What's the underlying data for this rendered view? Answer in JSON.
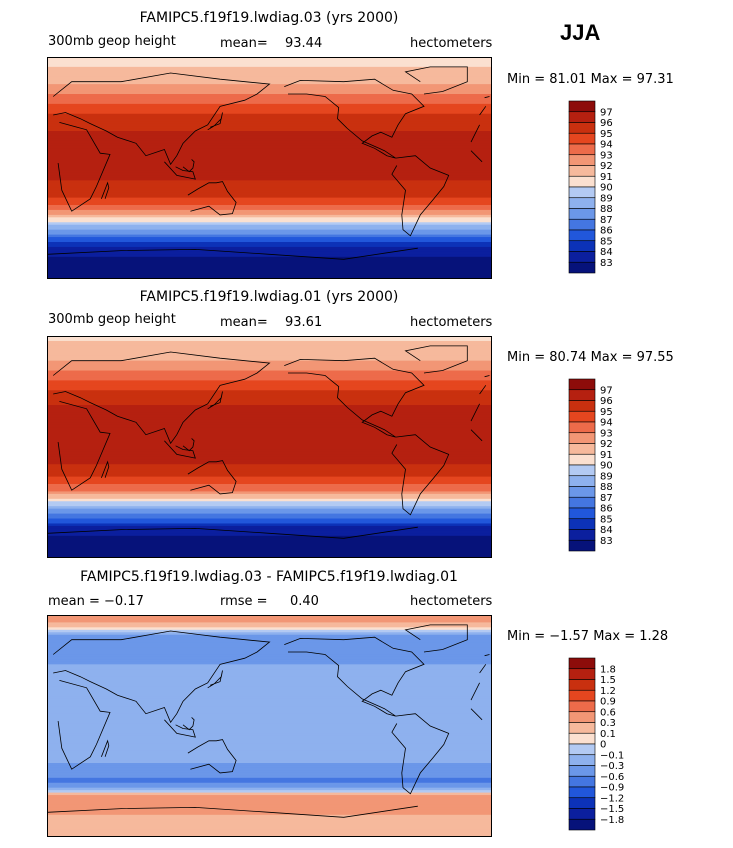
{
  "season": "JJA",
  "colors": {
    "warm": [
      "#fbe0d0",
      "#f6b99c",
      "#f29675",
      "#ed6b4a",
      "#e5461f",
      "#c9300f",
      "#b52010",
      "#8d0c0a"
    ],
    "cool": [
      "#dde8f9",
      "#b3caf3",
      "#8eb1ee",
      "#6b97e9",
      "#4476e1",
      "#2157db",
      "#0c32b8",
      "#0b1f9e",
      "#06127a"
    ]
  },
  "panels": [
    {
      "title": "FAMIPC5.f19f19.lwdiag.03 (yrs 2000)",
      "left": "300mb geop height",
      "mid_label": "mean=",
      "mid_value": "93.44",
      "right": "hectometers",
      "minmax": "Min =  81.01 Max =  97.31"
    },
    {
      "title": "FAMIPC5.f19f19.lwdiag.01 (yrs 2000)",
      "left": "300mb geop height",
      "mid_label": "mean=",
      "mid_value": "93.61",
      "right": "hectometers",
      "minmax": "Min =  80.74 Max =  97.55"
    },
    {
      "title": "FAMIPC5.f19f19.lwdiag.03 - FAMIPC5.f19f19.lwdiag.01",
      "left": "mean =  −0.17",
      "mid_label": "rmse =",
      "mid_value": "0.40",
      "right": "hectometers",
      "minmax": "Min =  −1.57 Max =   1.28"
    }
  ],
  "chart_data": [
    {
      "type": "heatmap",
      "title": "FAMIPC5.f19f19.lwdiag.03 (yrs 2000)",
      "variable": "300mb geop height",
      "units": "hectometers",
      "mean": 93.44,
      "min": 81.01,
      "max": 97.31,
      "levels": [
        83,
        84,
        85,
        86,
        87,
        88,
        89,
        90,
        91,
        92,
        93,
        94,
        95,
        96,
        97
      ],
      "level_labels": [
        "97",
        "96",
        "95",
        "94",
        "93",
        "92",
        "91",
        "90",
        "89",
        "88",
        "87",
        "86",
        "85",
        "84",
        "83"
      ],
      "zonal_profile": [
        {
          "lat": 90,
          "value": 90.5
        },
        {
          "lat": 70,
          "value": 91.8
        },
        {
          "lat": 55,
          "value": 93.5
        },
        {
          "lat": 40,
          "value": 95.5
        },
        {
          "lat": 20,
          "value": 96.6
        },
        {
          "lat": 0,
          "value": 96.4
        },
        {
          "lat": -20,
          "value": 95.6
        },
        {
          "lat": -35,
          "value": 93.0
        },
        {
          "lat": -45,
          "value": 89.5
        },
        {
          "lat": -55,
          "value": 86.5
        },
        {
          "lat": -65,
          "value": 84.0
        },
        {
          "lat": -80,
          "value": 82.0
        }
      ]
    },
    {
      "type": "heatmap",
      "title": "FAMIPC5.f19f19.lwdiag.01 (yrs 2000)",
      "variable": "300mb geop height",
      "units": "hectometers",
      "mean": 93.61,
      "min": 80.74,
      "max": 97.55,
      "levels": [
        83,
        84,
        85,
        86,
        87,
        88,
        89,
        90,
        91,
        92,
        93,
        94,
        95,
        96,
        97
      ],
      "level_labels": [
        "97",
        "96",
        "95",
        "94",
        "93",
        "92",
        "91",
        "90",
        "89",
        "88",
        "87",
        "86",
        "85",
        "84",
        "83"
      ],
      "zonal_profile": [
        {
          "lat": 90,
          "value": 90.8
        },
        {
          "lat": 70,
          "value": 92.0
        },
        {
          "lat": 55,
          "value": 93.8
        },
        {
          "lat": 40,
          "value": 95.7
        },
        {
          "lat": 20,
          "value": 96.9
        },
        {
          "lat": 0,
          "value": 96.6
        },
        {
          "lat": -20,
          "value": 95.8
        },
        {
          "lat": -35,
          "value": 93.2
        },
        {
          "lat": -45,
          "value": 89.8
        },
        {
          "lat": -55,
          "value": 86.6
        },
        {
          "lat": -65,
          "value": 84.0
        },
        {
          "lat": -80,
          "value": 81.8
        }
      ]
    },
    {
      "type": "heatmap",
      "title": "FAMIPC5.f19f19.lwdiag.03 - FAMIPC5.f19f19.lwdiag.01",
      "units": "hectometers",
      "mean": -0.17,
      "rmse": 0.4,
      "min": -1.57,
      "max": 1.28,
      "levels": [
        -1.8,
        -1.5,
        -1.2,
        -0.9,
        -0.6,
        -0.3,
        -0.1,
        0,
        0.1,
        0.3,
        0.6,
        0.9,
        1.2,
        1.5,
        1.8
      ],
      "level_labels": [
        "1.8",
        "1.5",
        "1.2",
        "0.9",
        "0.6",
        "0.3",
        "0.1",
        "0",
        "−0.1",
        "−0.3",
        "−0.6",
        "−0.9",
        "−1.2",
        "−1.5",
        "−1.8"
      ],
      "zonal_profile": [
        {
          "lat": 85,
          "value": 0.4
        },
        {
          "lat": 70,
          "value": -0.5
        },
        {
          "lat": 50,
          "value": -0.3
        },
        {
          "lat": 30,
          "value": -0.2
        },
        {
          "lat": 0,
          "value": -0.2
        },
        {
          "lat": -30,
          "value": -0.3
        },
        {
          "lat": -45,
          "value": -0.7
        },
        {
          "lat": -60,
          "value": 0.6
        },
        {
          "lat": -75,
          "value": 0.2
        }
      ]
    }
  ]
}
